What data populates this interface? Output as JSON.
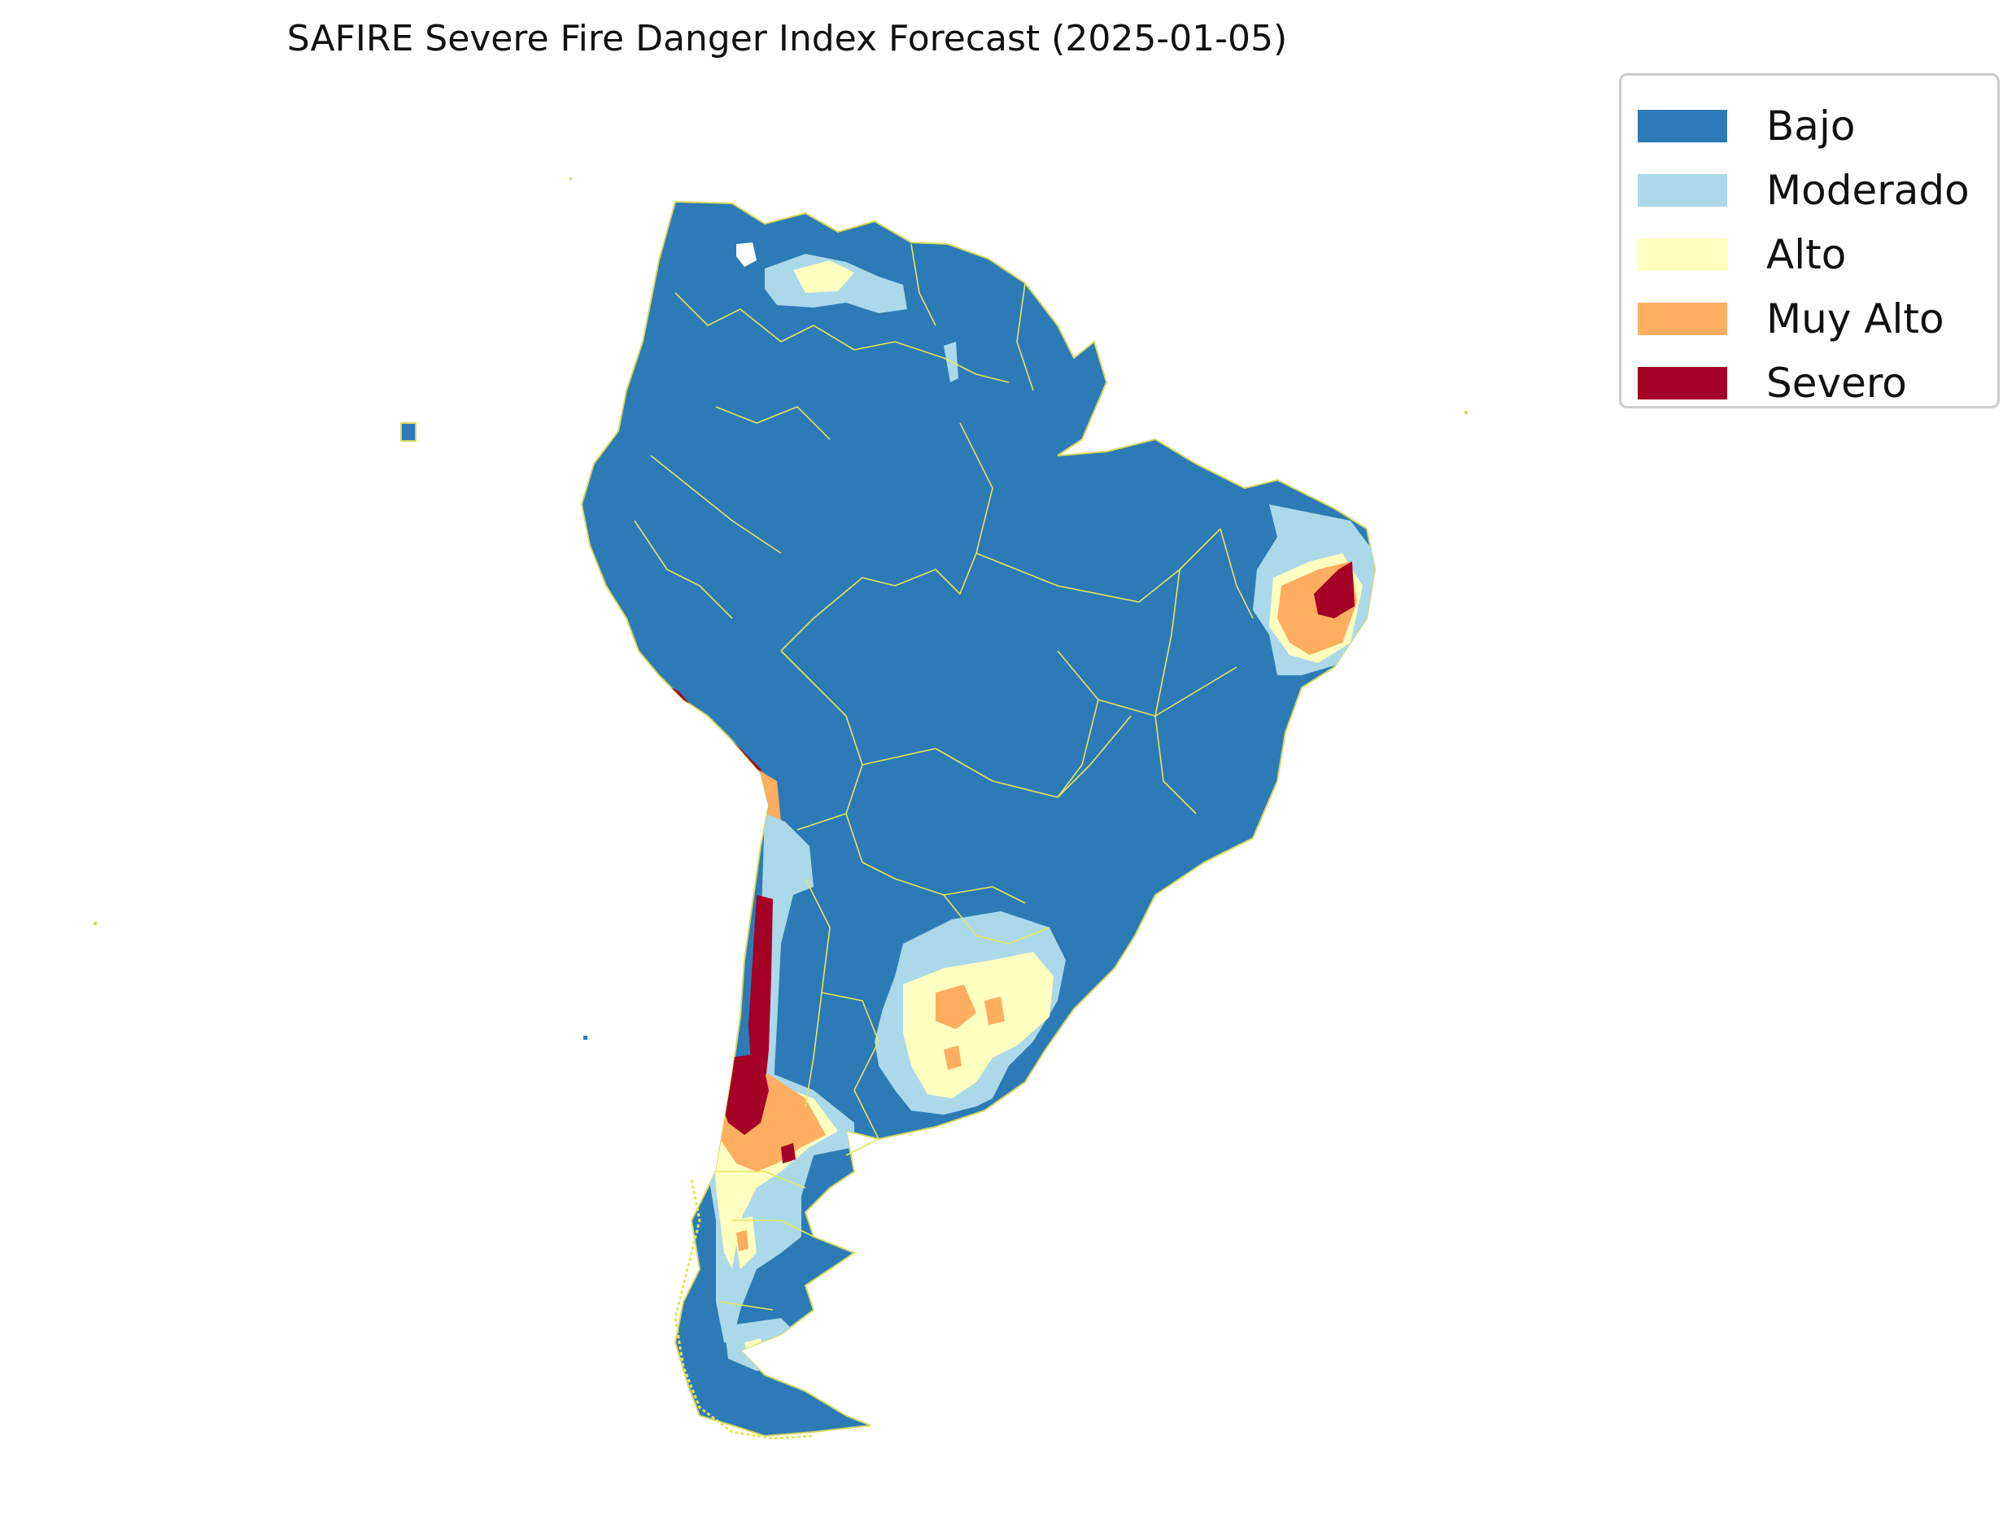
{
  "title": "SAFIRE Severe Fire Danger Index Forecast (2025-01-05)",
  "colors": {
    "bajo": "#2c7bb6",
    "moderado": "#abd9e9",
    "alto": "#ffffbf",
    "muy_alto": "#fdae61",
    "severo": "#a50026",
    "borders": "#e6e65a"
  },
  "legend": {
    "items": [
      {
        "label": "Bajo",
        "color": "#2c7bb6"
      },
      {
        "label": "Moderado",
        "color": "#abd9e9"
      },
      {
        "label": "Alto",
        "color": "#ffffbf"
      },
      {
        "label": "Muy Alto",
        "color": "#fdae61"
      },
      {
        "label": "Severo",
        "color": "#a50026"
      }
    ]
  }
}
